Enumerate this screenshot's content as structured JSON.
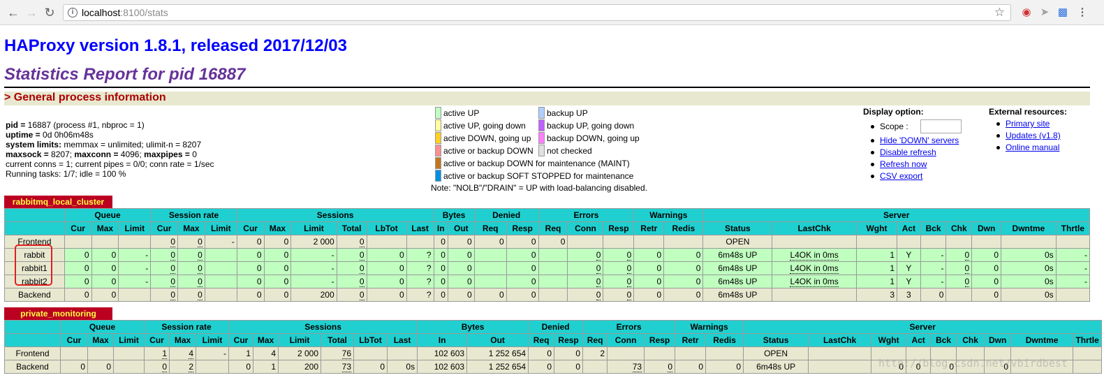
{
  "browser": {
    "url_host": "localhost",
    "url_rest": ":8100/stats",
    "back_icon": "arrow-left-icon",
    "forward_icon": "arrow-right-icon",
    "reload_icon": "reload-icon",
    "star_icon": "star-icon",
    "menu_icon": "kebab-menu-icon"
  },
  "header": {
    "version": "HAProxy version 1.8.1, released 2017/12/03",
    "report": "Statistics Report for pid 16887",
    "section": "> General process information"
  },
  "process": {
    "line1_label": "pid = ",
    "line1_value": "16887 (process #1, nbproc = 1)",
    "line2_label": "uptime = ",
    "line2_value": "0d 0h06m48s",
    "line3_label": "system limits:",
    "line3_value": " memmax = unlimited; ulimit-n = 8207",
    "line4a_label": "maxsock = ",
    "line4a_value": "8207; ",
    "line4b_label": "maxconn = ",
    "line4b_value": "4096; ",
    "line4c_label": "maxpipes = ",
    "line4c_value": "0",
    "line5": "current conns = 1; current pipes = 0/0; conn rate = 1/sec",
    "line6": "Running tasks: 1/7; idle = 100 %"
  },
  "legend": {
    "items": [
      {
        "label": "active UP",
        "color": "#c0ffc0"
      },
      {
        "label": "active UP, going down",
        "color": "#ffffa0"
      },
      {
        "label": "active DOWN, going up",
        "color": "#ffd020"
      },
      {
        "label": "active or backup DOWN",
        "color": "#ff9090"
      },
      {
        "label": "active or backup DOWN for maintenance (MAINT)",
        "color": "#c07820"
      },
      {
        "label": "active or backup SOFT STOPPED for maintenance",
        "color": "#0090e0"
      },
      {
        "label": "backup UP",
        "color": "#b0d0ff"
      },
      {
        "label": "backup UP, going down",
        "color": "#c060ff"
      },
      {
        "label": "backup DOWN, going up",
        "color": "#ff80ff"
      },
      {
        "label": "not checked",
        "color": "#e0e0e0"
      }
    ],
    "note": "Note: \"NOLB\"/\"DRAIN\" = UP with load-balancing disabled."
  },
  "display_option": {
    "title": "Display option:",
    "scope_label": "Scope :",
    "scope_value": "",
    "links": [
      "Hide 'DOWN' servers",
      "Disable refresh",
      "Refresh now",
      "CSV export"
    ]
  },
  "external": {
    "title": "External resources:",
    "links": [
      "Primary site",
      "Updates (v1.8)",
      "Online manual"
    ]
  },
  "t1": {
    "name": "rabbitmq_local_cluster",
    "groups": [
      "Queue",
      "Session rate",
      "Sessions",
      "Bytes",
      "Denied",
      "Errors",
      "Warnings",
      "Server"
    ],
    "cols": [
      "Cur",
      "Max",
      "Limit",
      "Cur",
      "Max",
      "Limit",
      "Cur",
      "Max",
      "Limit",
      "Total",
      "LbTot",
      "Last",
      "In",
      "Out",
      "Req",
      "Resp",
      "Req",
      "Conn",
      "Resp",
      "Retr",
      "Redis",
      "Status",
      "LastChk",
      "Wght",
      "Act",
      "Bck",
      "Chk",
      "Dwn",
      "Dwntme",
      "Thrtle"
    ],
    "rows": [
      {
        "name": "Frontend",
        "c": [
          "",
          "",
          "",
          "0",
          "0",
          "-",
          "0",
          "0",
          "2 000",
          "0",
          "",
          "",
          "0",
          "0",
          "0",
          "0",
          "0",
          "",
          "",
          "",
          "",
          "OPEN",
          "",
          "",
          "",
          "",
          "",
          "",
          "",
          ""
        ]
      },
      {
        "name": "rabbit",
        "c": [
          "0",
          "0",
          "-",
          "0",
          "0",
          "",
          "0",
          "0",
          "-",
          "0",
          "0",
          "?",
          "0",
          "0",
          "",
          "0",
          "",
          "0",
          "0",
          "0",
          "0",
          "6m48s UP",
          "L4OK in 0ms",
          "1",
          "Y",
          "-",
          "0",
          "0",
          "0s",
          "-"
        ]
      },
      {
        "name": "rabbit1",
        "c": [
          "0",
          "0",
          "-",
          "0",
          "0",
          "",
          "0",
          "0",
          "-",
          "0",
          "0",
          "?",
          "0",
          "0",
          "",
          "0",
          "",
          "0",
          "0",
          "0",
          "0",
          "6m48s UP",
          "L4OK in 0ms",
          "1",
          "Y",
          "-",
          "0",
          "0",
          "0s",
          "-"
        ]
      },
      {
        "name": "rabbit2",
        "c": [
          "0",
          "0",
          "-",
          "0",
          "0",
          "",
          "0",
          "0",
          "-",
          "0",
          "0",
          "?",
          "0",
          "0",
          "",
          "0",
          "",
          "0",
          "0",
          "0",
          "0",
          "6m48s UP",
          "L4OK in 0ms",
          "1",
          "Y",
          "-",
          "0",
          "0",
          "0s",
          "-"
        ]
      },
      {
        "name": "Backend",
        "c": [
          "0",
          "0",
          "",
          "0",
          "0",
          "",
          "0",
          "0",
          "200",
          "0",
          "0",
          "?",
          "0",
          "0",
          "0",
          "0",
          "",
          "0",
          "0",
          "0",
          "0",
          "6m48s UP",
          "",
          "3",
          "3",
          "0",
          "",
          "0",
          "0s",
          ""
        ]
      }
    ]
  },
  "t2": {
    "name": "private_monitoring",
    "groups": [
      "Queue",
      "Session rate",
      "Sessions",
      "Bytes",
      "Denied",
      "Errors",
      "Warnings",
      "Server"
    ],
    "cols": [
      "Cur",
      "Max",
      "Limit",
      "Cur",
      "Max",
      "Limit",
      "Cur",
      "Max",
      "Limit",
      "Total",
      "LbTot",
      "Last",
      "In",
      "Out",
      "Req",
      "Resp",
      "Req",
      "Conn",
      "Resp",
      "Retr",
      "Redis",
      "Status",
      "LastChk",
      "Wght",
      "Act",
      "Bck",
      "Chk",
      "Dwn",
      "Dwntme",
      "Thrtle"
    ],
    "rows": [
      {
        "name": "Frontend",
        "c": [
          "",
          "",
          "",
          "1",
          "4",
          "-",
          "1",
          "4",
          "2 000",
          "76",
          "",
          "",
          "102 603",
          "1 252 654",
          "0",
          "0",
          "2",
          "",
          "",
          "",
          "",
          "OPEN",
          "",
          "",
          "",
          "",
          "",
          "",
          "",
          ""
        ]
      },
      {
        "name": "Backend",
        "c": [
          "0",
          "0",
          "",
          "0",
          "2",
          "",
          "0",
          "1",
          "200",
          "73",
          "0",
          "0s",
          "102 603",
          "1 252 654",
          "0",
          "0",
          "",
          "73",
          "0",
          "0",
          "0",
          "6m48s UP",
          "",
          "0",
          "0",
          "0",
          "",
          "0",
          "",
          ""
        ]
      }
    ]
  },
  "watermark": "http://blog.csdn.net/vbirdbest"
}
